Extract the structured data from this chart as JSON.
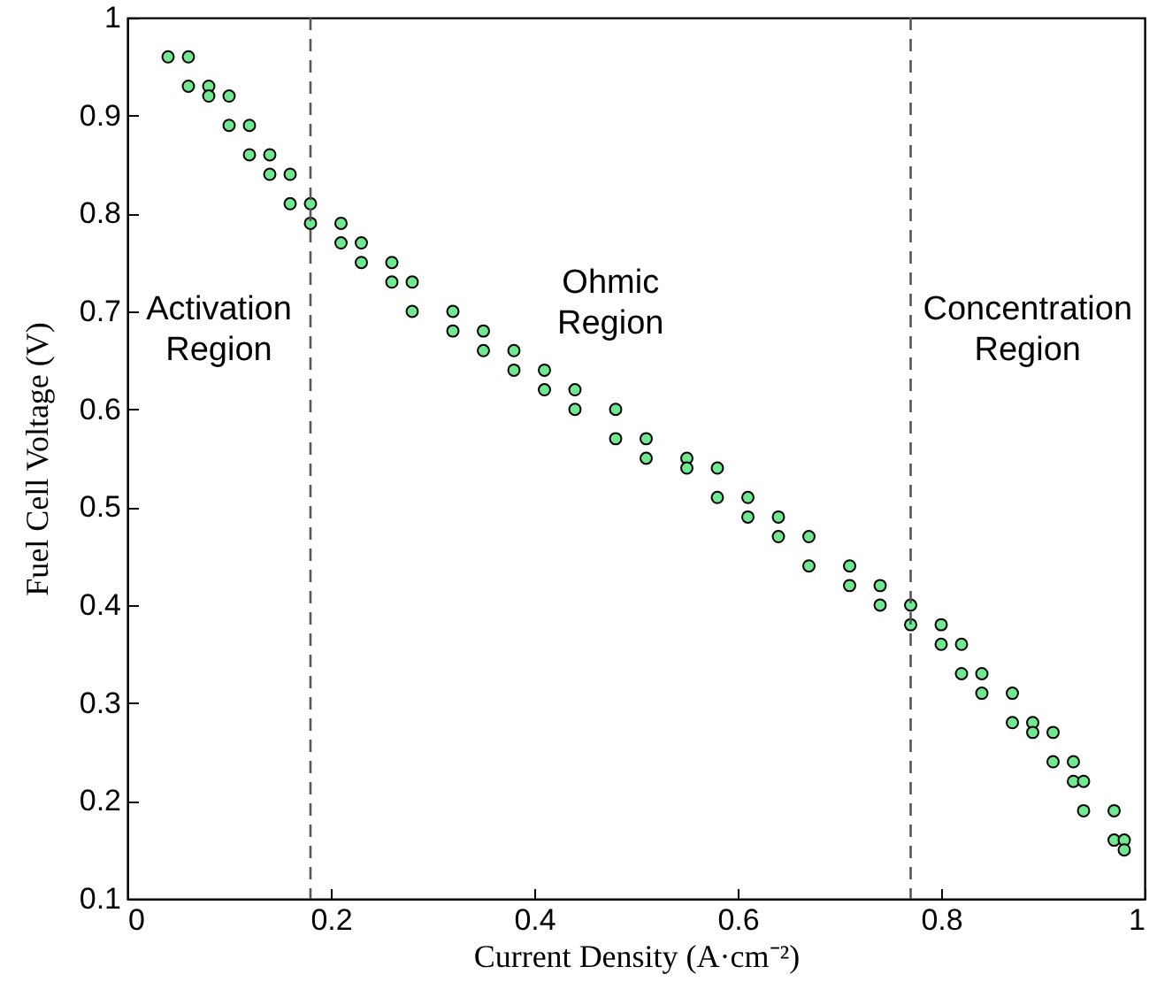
{
  "chart_data": {
    "type": "scatter",
    "xlabel": "Current Density (A·cm⁻²)",
    "ylabel": "Fuel Cell Voltage (V)",
    "xlim": [
      0,
      1
    ],
    "ylim": [
      0.1,
      1
    ],
    "xticks": [
      0,
      0.2,
      0.4,
      0.6,
      0.8,
      1
    ],
    "yticks": [
      0.1,
      0.2,
      0.3,
      0.4,
      0.5,
      0.6,
      0.7,
      0.8,
      0.9,
      1
    ],
    "grid": false,
    "marker": "circle",
    "ref_lines": [
      {
        "axis": "x",
        "value": 0.18,
        "line_style": "dashed",
        "color": "#555555"
      },
      {
        "axis": "x",
        "value": 0.77,
        "line_style": "dashed",
        "color": "#555555"
      }
    ],
    "annotations": [
      "Activation Region",
      "Ohmic Region",
      "Concentration Region"
    ],
    "series": [
      {
        "color": "#6fe88f",
        "x": [
          0.04,
          0.06,
          0.06,
          0.08,
          0.08,
          0.1,
          0.1,
          0.12,
          0.12,
          0.14,
          0.14,
          0.16,
          0.16,
          0.18,
          0.18,
          0.21,
          0.21,
          0.23,
          0.23,
          0.26,
          0.26,
          0.28,
          0.28,
          0.32,
          0.32,
          0.35,
          0.35,
          0.38,
          0.38,
          0.41,
          0.41,
          0.44,
          0.44,
          0.48,
          0.48,
          0.51,
          0.51,
          0.55,
          0.55,
          0.58,
          0.58,
          0.61,
          0.61,
          0.64,
          0.64,
          0.67,
          0.67,
          0.71,
          0.71,
          0.74,
          0.74,
          0.77,
          0.77,
          0.8,
          0.8,
          0.82,
          0.82,
          0.84,
          0.84,
          0.87,
          0.87,
          0.89,
          0.89,
          0.91,
          0.91,
          0.93,
          0.93,
          0.94,
          0.94,
          0.97,
          0.97,
          0.98,
          0.98
        ],
        "values": [
          0.96,
          0.96,
          0.93,
          0.93,
          0.92,
          0.92,
          0.89,
          0.89,
          0.86,
          0.86,
          0.84,
          0.84,
          0.81,
          0.81,
          0.79,
          0.79,
          0.77,
          0.77,
          0.75,
          0.75,
          0.73,
          0.73,
          0.7,
          0.7,
          0.68,
          0.68,
          0.66,
          0.66,
          0.64,
          0.64,
          0.62,
          0.62,
          0.6,
          0.6,
          0.57,
          0.57,
          0.55,
          0.55,
          0.54,
          0.54,
          0.51,
          0.51,
          0.49,
          0.49,
          0.47,
          0.47,
          0.44,
          0.44,
          0.42,
          0.42,
          0.4,
          0.4,
          0.38,
          0.38,
          0.36,
          0.36,
          0.33,
          0.33,
          0.31,
          0.31,
          0.28,
          0.28,
          0.27,
          0.27,
          0.24,
          0.24,
          0.22,
          0.22,
          0.19,
          0.19,
          0.16,
          0.16,
          0.15
        ]
      }
    ]
  }
}
